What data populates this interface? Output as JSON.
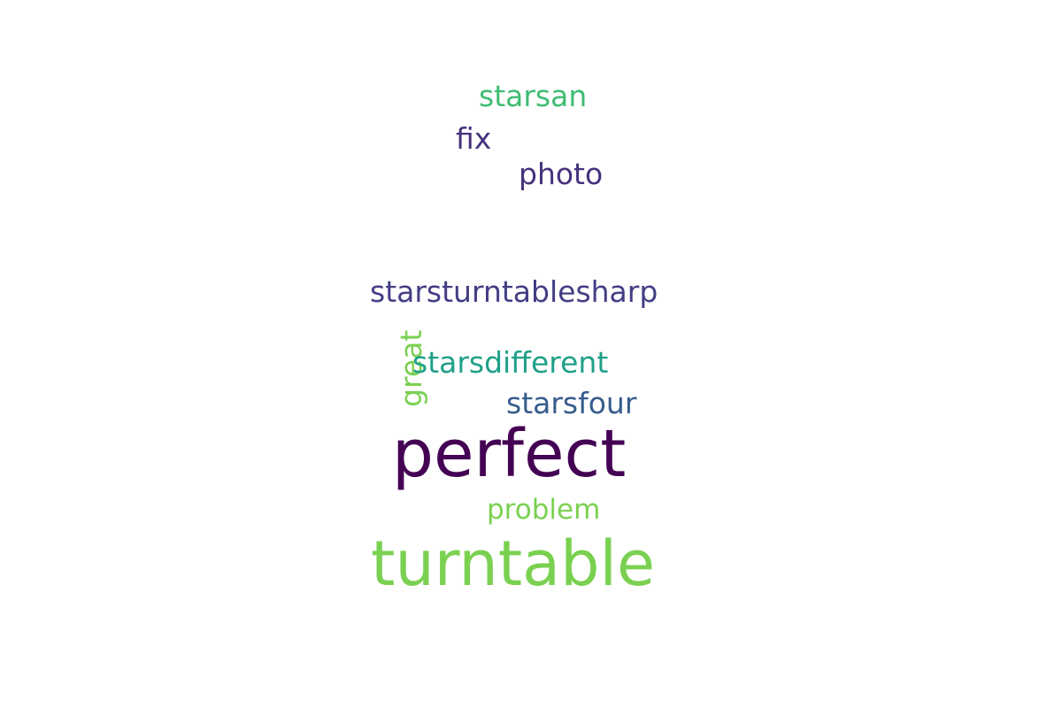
{
  "words": [
    {
      "text": "starsan",
      "color": "#3fbc73"
    },
    {
      "text": "fix",
      "color": "#46327e"
    },
    {
      "text": "photo",
      "color": "#46327e"
    },
    {
      "text": "starsturntablesharp",
      "color": "#433e85"
    },
    {
      "text": "great",
      "color": "#7ad151"
    },
    {
      "text": "starsdifferent",
      "color": "#1fa088"
    },
    {
      "text": "starsfour",
      "color": "#365c8d"
    },
    {
      "text": "perfect",
      "color": "#440154"
    },
    {
      "text": "problem",
      "color": "#7ad151"
    },
    {
      "text": "turntable",
      "color": "#7ad151"
    }
  ]
}
